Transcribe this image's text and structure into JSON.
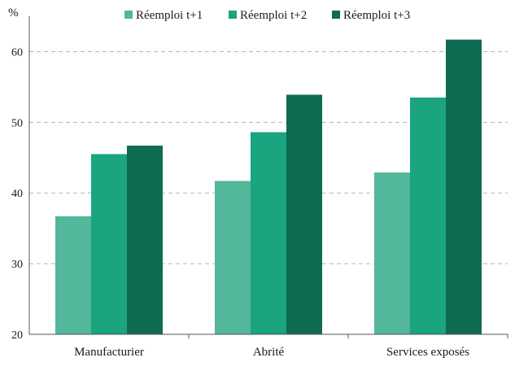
{
  "chart_data": {
    "type": "bar",
    "unit_label": "%",
    "categories": [
      "Manufacturier",
      "Abrité",
      "Services exposés"
    ],
    "series": [
      {
        "name": "Réemploi t+1",
        "color": "#52b79b",
        "values": [
          36.7,
          41.7,
          42.9
        ]
      },
      {
        "name": "Réemploi t+2",
        "color": "#1aa47f",
        "values": [
          45.5,
          48.6,
          53.5
        ]
      },
      {
        "name": "Réemploi t+3",
        "color": "#0f6b52",
        "values": [
          46.7,
          53.9,
          61.7
        ]
      }
    ],
    "ylim": [
      20,
      65
    ],
    "yticks": [
      20,
      30,
      40,
      50,
      60
    ],
    "grid": true,
    "legend_position": "top"
  }
}
